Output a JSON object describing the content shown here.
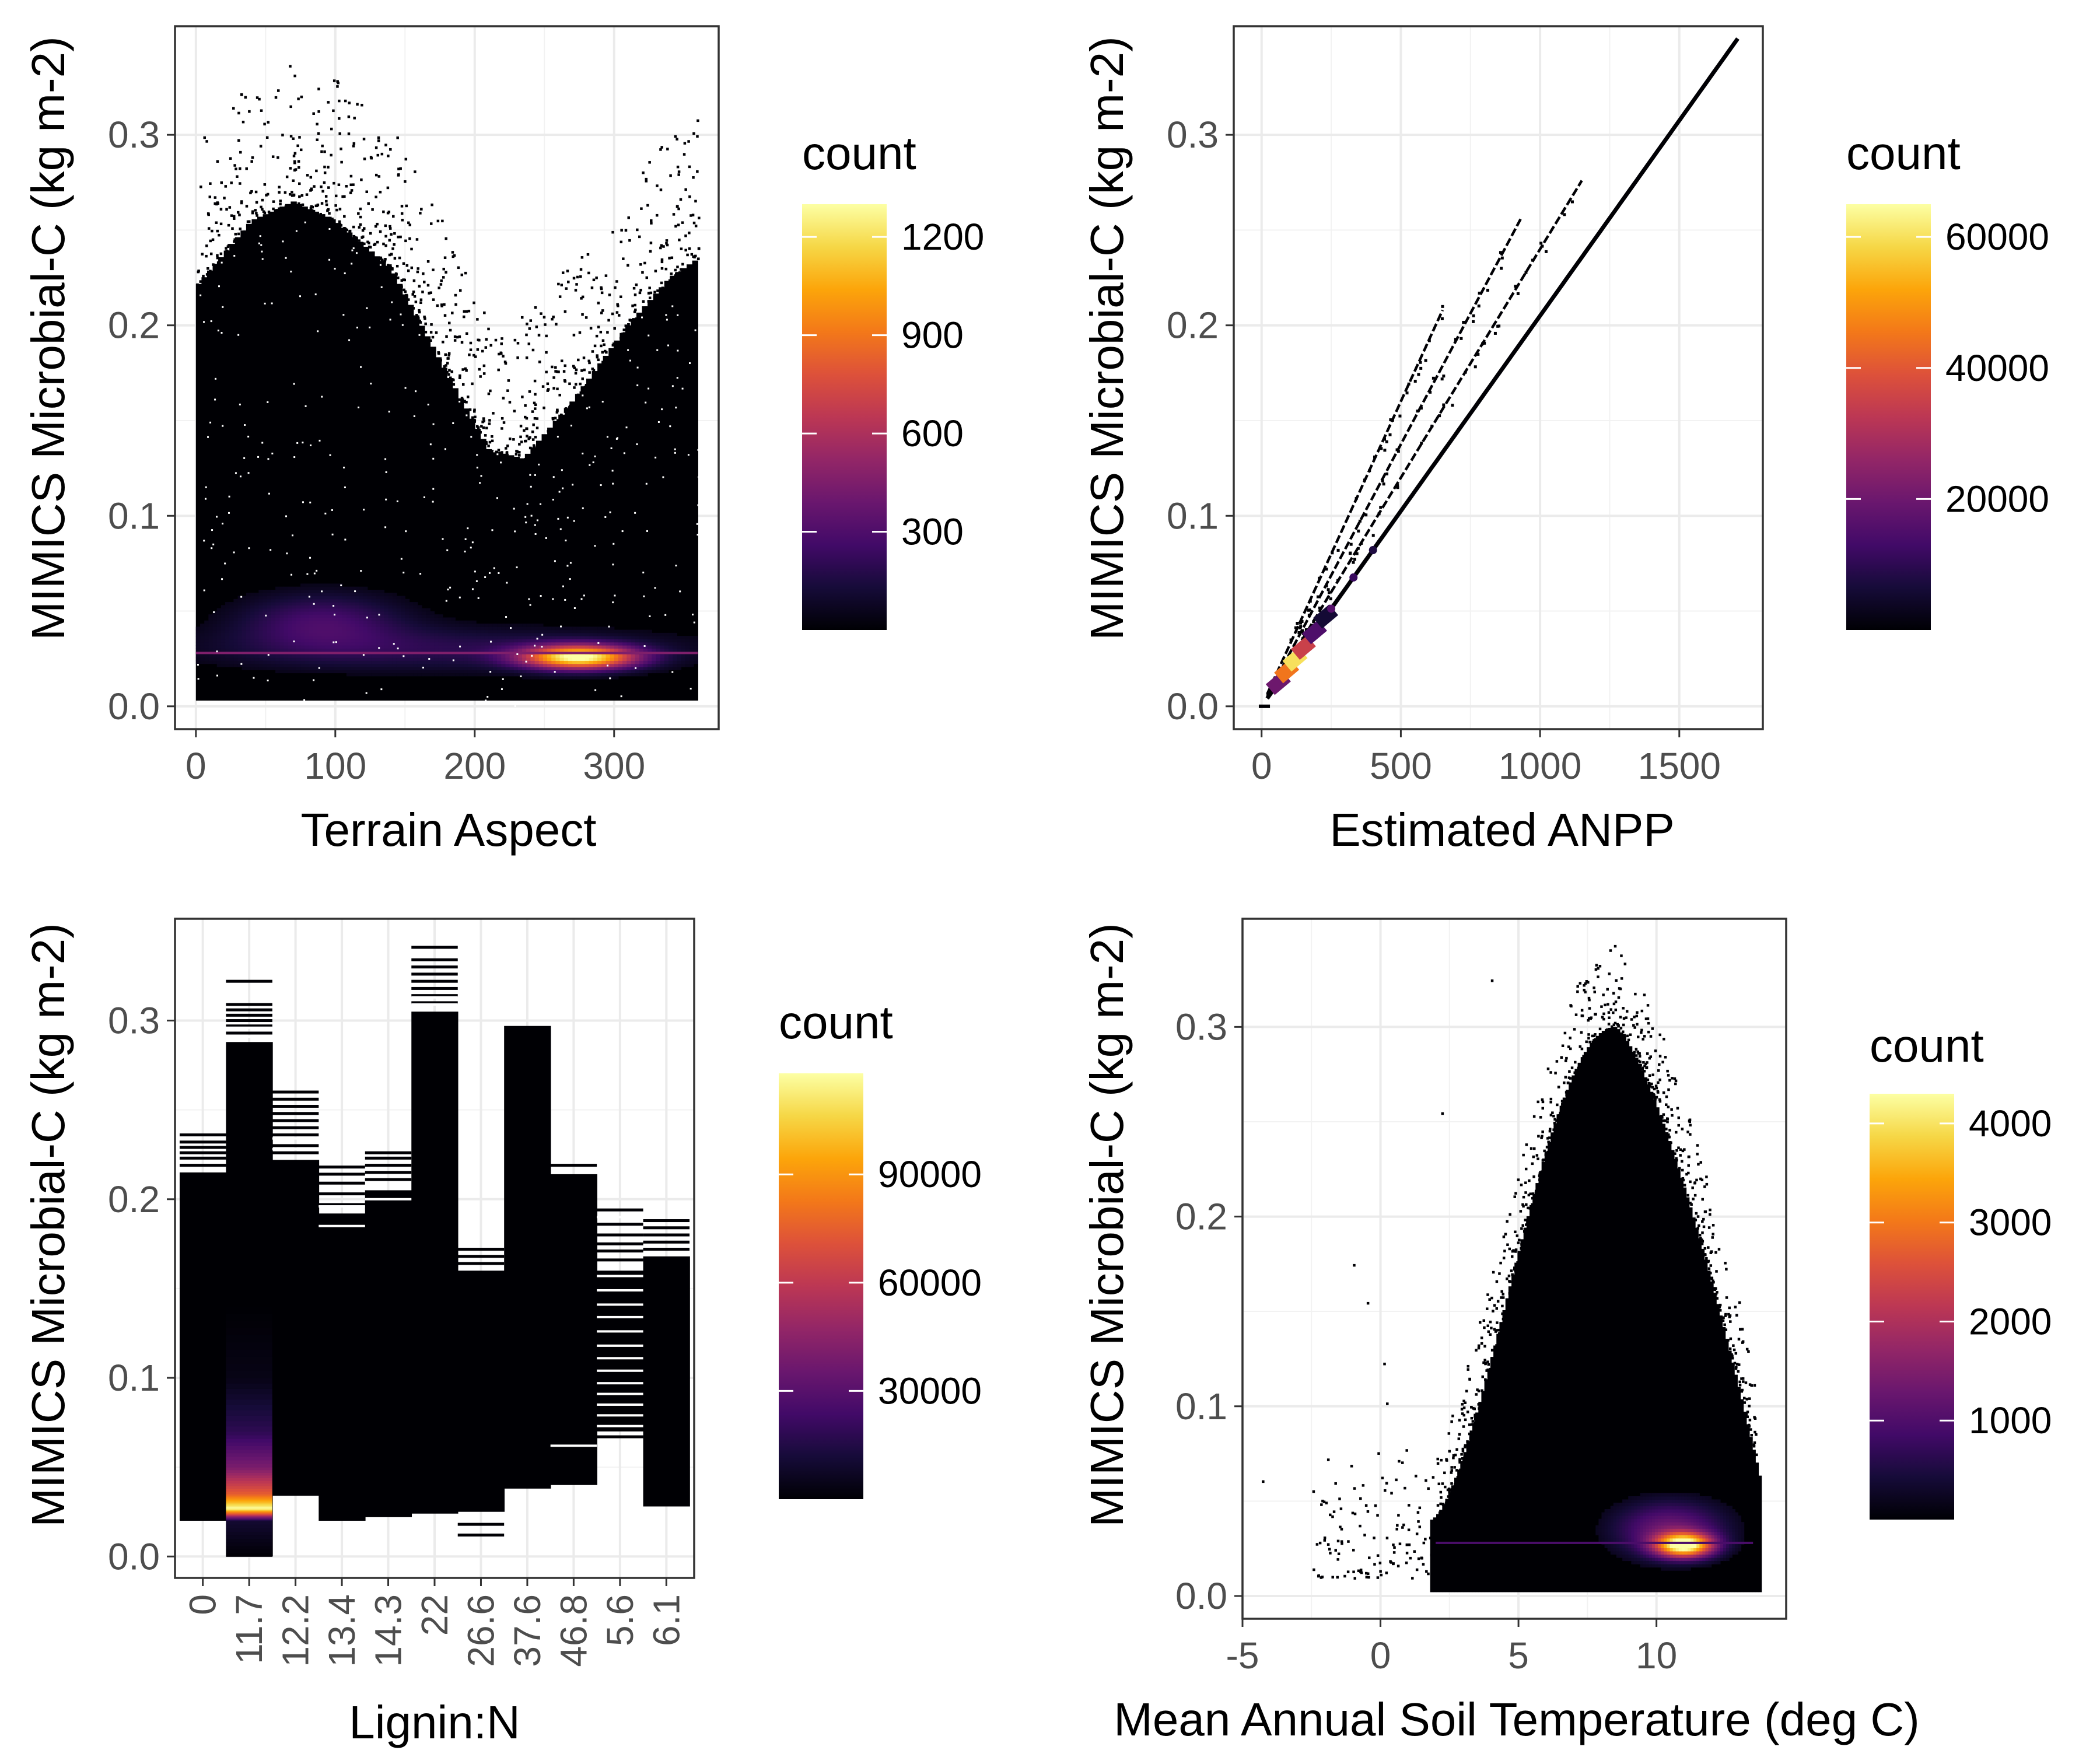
{
  "chart_data": [
    {
      "id": "aspect",
      "type": "heatmap",
      "title": "",
      "xlabel": "Terrain Aspect",
      "ylabel": "MIMICS Microbial-C (kg m-2)",
      "xlim": [
        -15,
        375
      ],
      "ylim": [
        -0.012,
        0.357
      ],
      "x_ticks": [
        0,
        100,
        200,
        300
      ],
      "y_ticks": [
        0.0,
        0.1,
        0.2,
        0.3
      ],
      "y_tick_labels": [
        "0.0",
        "0.1",
        "0.2",
        "0.3"
      ],
      "grid": true,
      "legend": {
        "title": "count",
        "placement": "right",
        "range": [
          0,
          1300
        ],
        "ticks": [
          300,
          600,
          900,
          1200
        ],
        "tick_labels": [
          "300",
          "600",
          "900",
          "1200"
        ]
      },
      "x_range": [
        0,
        360
      ],
      "bottom_edge": 0.003,
      "upper_envelope": [
        [
          0,
          0.22
        ],
        [
          40,
          0.255
        ],
        [
          70,
          0.265
        ],
        [
          100,
          0.255
        ],
        [
          140,
          0.23
        ],
        [
          180,
          0.175
        ],
        [
          210,
          0.135
        ],
        [
          235,
          0.13
        ],
        [
          270,
          0.16
        ],
        [
          310,
          0.2
        ],
        [
          340,
          0.225
        ],
        [
          360,
          0.235
        ]
      ],
      "hotspots": [
        {
          "x": 275,
          "y": 0.026,
          "dx": 40,
          "dy": 0.006,
          "count": 1250
        },
        {
          "x": 90,
          "y": 0.045,
          "dx": 60,
          "dy": 0.015,
          "count": 260
        },
        {
          "x": 180,
          "y": 0.03,
          "dx": 180,
          "dy": 0.012,
          "count": 180
        }
      ]
    },
    {
      "id": "anpp",
      "type": "heatmap",
      "title": "",
      "xlabel": "Estimated ANPP",
      "ylabel": "MIMICS Microbial-C (kg m-2)",
      "xlim": [
        -100,
        1800
      ],
      "ylim": [
        -0.012,
        0.357
      ],
      "x_ticks": [
        0,
        500,
        1000,
        1500
      ],
      "y_ticks": [
        0.0,
        0.1,
        0.2,
        0.3
      ],
      "y_tick_labels": [
        "0.0",
        "0.1",
        "0.2",
        "0.3"
      ],
      "grid": true,
      "legend": {
        "title": "count",
        "placement": "right",
        "range": [
          0,
          65000
        ],
        "ticks": [
          20000,
          40000,
          60000
        ],
        "tick_labels": [
          "20000",
          "40000",
          "60000"
        ]
      },
      "lines": [
        {
          "slope": 0.000205,
          "x_max": 1710,
          "intercept": 0.0
        },
        {
          "slope": 0.00024,
          "x_max": 1150,
          "intercept": 0.0
        },
        {
          "slope": 0.000275,
          "x_max": 930,
          "intercept": 0.0
        },
        {
          "slope": 0.00032,
          "x_max": 650,
          "intercept": 0.0
        }
      ],
      "hotspot": {
        "x": 130,
        "y": 0.03,
        "count": 60000
      }
    },
    {
      "id": "lignin",
      "type": "heatmap",
      "title": "",
      "xlabel": "Lignin:N",
      "ylabel": "MIMICS Microbial-C (kg m-2)",
      "xlim": [
        0.4,
        11.6
      ],
      "ylim": [
        -0.012,
        0.357
      ],
      "categories": [
        "0",
        "11.7",
        "12.2",
        "13.4",
        "14.3",
        "22",
        "26.6",
        "37.6",
        "46.8",
        "5.6",
        "6.1"
      ],
      "y_ticks": [
        0.0,
        0.1,
        0.2,
        0.3
      ],
      "y_tick_labels": [
        "0.0",
        "0.1",
        "0.2",
        "0.3"
      ],
      "grid": true,
      "legend": {
        "title": "count",
        "placement": "right",
        "range": [
          0,
          118000
        ],
        "ticks": [
          30000,
          60000,
          90000
        ],
        "tick_labels": [
          "30000",
          "60000",
          "90000"
        ]
      },
      "columns": [
        {
          "low": 0.02,
          "high": 0.215,
          "extra": [
            0.219,
            0.223,
            0.226,
            0.229,
            0.232,
            0.236
          ]
        },
        {
          "low": 0.0,
          "high": 0.288,
          "extra": [
            0.293,
            0.297,
            0.3,
            0.303,
            0.306,
            0.309,
            0.322
          ],
          "hot": true
        },
        {
          "low": 0.034,
          "high": 0.222,
          "extra": [
            0.226,
            0.23,
            0.236,
            0.24,
            0.244,
            0.248,
            0.252,
            0.256,
            0.26
          ]
        },
        {
          "low": 0.02,
          "high": 0.192,
          "extra": [
            0.18,
            0.186,
            0.197,
            0.203,
            0.209,
            0.214,
            0.218
          ]
        },
        {
          "low": 0.022,
          "high": 0.205,
          "extra": [
            0.198,
            0.211,
            0.215,
            0.219,
            0.223,
            0.226
          ]
        },
        {
          "low": 0.024,
          "high": 0.305,
          "extra": [
            0.31,
            0.314,
            0.318,
            0.322,
            0.326,
            0.33,
            0.334,
            0.341
          ]
        },
        {
          "low": 0.025,
          "high": 0.16,
          "extra": [
            0.012,
            0.018,
            0.164,
            0.168,
            0.172
          ]
        },
        {
          "low": 0.038,
          "high": 0.297,
          "extra": []
        },
        {
          "low": 0.04,
          "high": 0.214,
          "extra": [
            0.219,
            0.06,
            0.063,
            0.057
          ]
        },
        {
          "low": 0.07,
          "high": 0.16,
          "extra": [
            0.194,
            0.186,
            0.18,
            0.175,
            0.171,
            0.166,
            0.152,
            0.145,
            0.138,
            0.13,
            0.122,
            0.115,
            0.108,
            0.1,
            0.094,
            0.088,
            0.082,
            0.076,
            0.067
          ]
        },
        {
          "low": 0.028,
          "high": 0.168,
          "extra": [
            0.172,
            0.176,
            0.18,
            0.184,
            0.188
          ]
        }
      ],
      "hot_column_gradient": [
        {
          "y": 0.0,
          "count": 0
        },
        {
          "y": 0.02,
          "count": 10000
        },
        {
          "y": 0.027,
          "count": 118000
        },
        {
          "y": 0.035,
          "count": 75000
        },
        {
          "y": 0.05,
          "count": 40000
        },
        {
          "y": 0.07,
          "count": 18000
        },
        {
          "y": 0.1,
          "count": 4000
        },
        {
          "y": 0.14,
          "count": 0
        }
      ]
    },
    {
      "id": "temperature",
      "type": "heatmap",
      "title": "",
      "xlabel": "Mean Annual Soil Temperature (deg C)",
      "ylabel": "MIMICS Microbial-C (kg m-2)",
      "xlim": [
        -5,
        14.7
      ],
      "ylim": [
        -0.012,
        0.357
      ],
      "x_ticks": [
        -5,
        0,
        5,
        10
      ],
      "y_ticks": [
        0.0,
        0.1,
        0.2,
        0.3
      ],
      "y_tick_labels": [
        "0.0",
        "0.1",
        "0.2",
        "0.3"
      ],
      "grid": true,
      "legend": {
        "title": "count",
        "placement": "right",
        "range": [
          0,
          4300
        ],
        "ticks": [
          1000,
          2000,
          3000,
          4000
        ],
        "tick_labels": [
          "1000",
          "2000",
          "3000",
          "4000"
        ]
      },
      "blob": {
        "x_left": 1.8,
        "x_right": 13.8,
        "peak_x": 8.5,
        "peak_y": 0.3,
        "bottom": 0.002
      },
      "hotspot": {
        "x": 11,
        "y": 0.027,
        "dx": 1.0,
        "dy": 0.006,
        "count": 4200
      }
    }
  ]
}
